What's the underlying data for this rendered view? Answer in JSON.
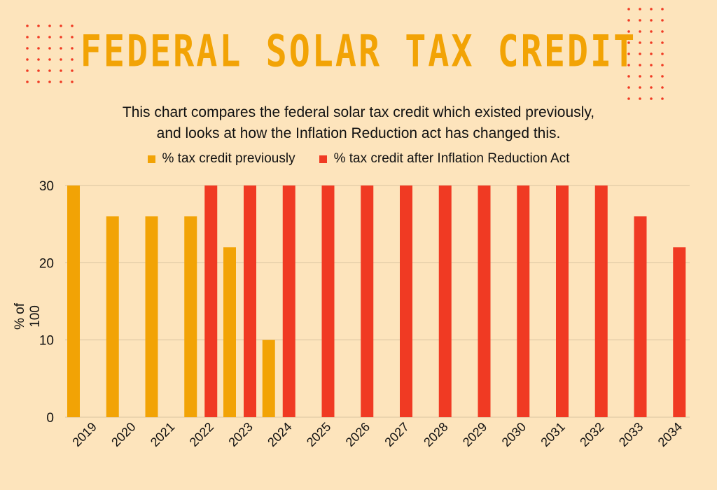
{
  "page": {
    "title": "FEDERAL SOLAR TAX CREDIT",
    "subtitle_line1": "This chart compares the federal solar tax credit which existed previously,",
    "subtitle_line2": "and looks at how the Inflation Reduction act has changed this."
  },
  "colors": {
    "background": "#fde4bc",
    "title": "#f2a305",
    "previous": "#f2a305",
    "after_ira": "#f03a23",
    "dots": "#f03a23",
    "grid": "#d9c4a0"
  },
  "chart_data": {
    "type": "bar",
    "title": "FEDERAL SOLAR TAX CREDIT",
    "ylabel": "% of 100",
    "xlabel": "",
    "ylim": [
      0,
      30
    ],
    "yticks": [
      0,
      10,
      20,
      30
    ],
    "grid": true,
    "legend_placement": "top-center",
    "categories": [
      "2019",
      "2020",
      "2021",
      "2022",
      "2023",
      "2024",
      "2025",
      "2026",
      "2027",
      "2028",
      "2029",
      "2030",
      "2031",
      "2032",
      "2033",
      "2034"
    ],
    "series": [
      {
        "name": "% tax credit previously",
        "values": [
          30,
          26,
          26,
          26,
          22,
          10,
          null,
          null,
          null,
          null,
          null,
          null,
          null,
          null,
          null,
          null
        ]
      },
      {
        "name": "% tax credit after Inflation Reduction Act",
        "values": [
          null,
          null,
          null,
          30,
          30,
          30,
          30,
          30,
          30,
          30,
          30,
          30,
          30,
          30,
          26,
          22
        ]
      }
    ]
  }
}
